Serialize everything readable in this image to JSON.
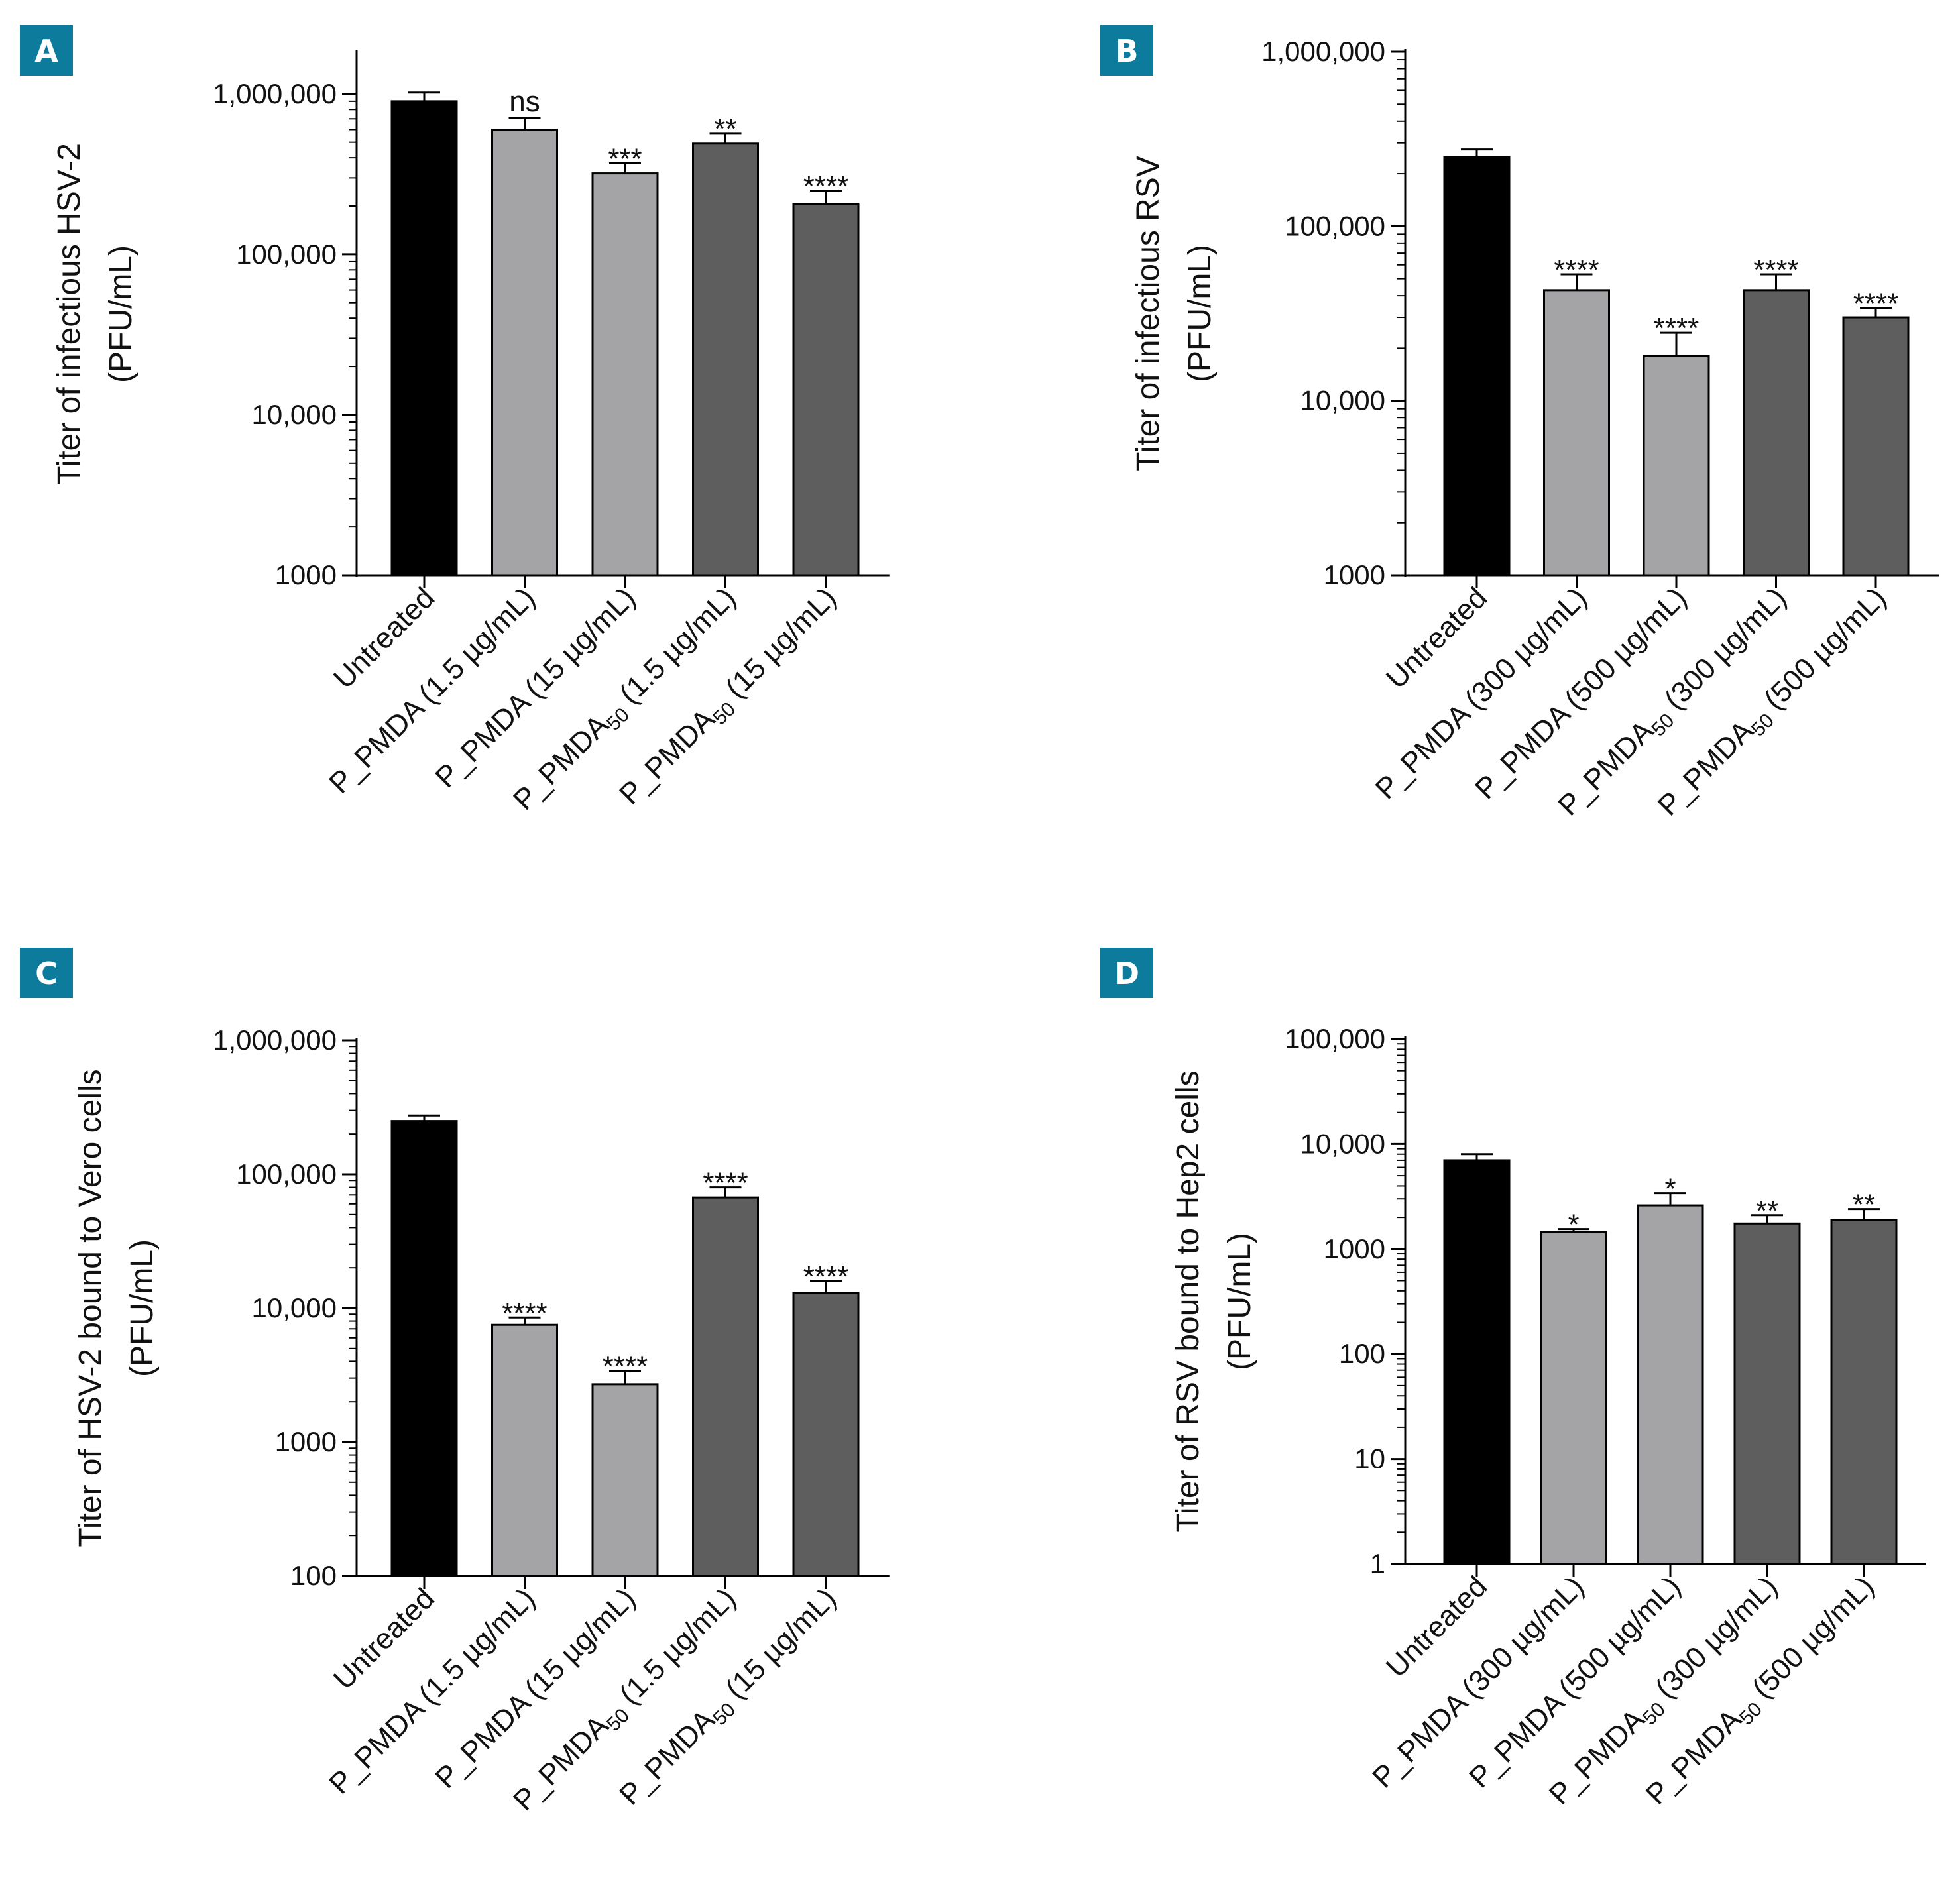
{
  "panels": [
    {
      "letter": "A"
    },
    {
      "letter": "B"
    },
    {
      "letter": "C"
    },
    {
      "letter": "D"
    }
  ],
  "chart_data": [
    {
      "type": "bar",
      "panel": "A",
      "yscale": "log",
      "ylabel_lines": [
        "Titer of infectious HSV-2",
        "(PFU/mL)"
      ],
      "ylim": [
        1000,
        1800000
      ],
      "yticks": [
        1000,
        10000,
        100000,
        1000000
      ],
      "ytick_labels": [
        "1000",
        "10,000",
        "100,000",
        "1,000,000"
      ],
      "categories": [
        {
          "main": "Untreated",
          "sub": "",
          "rest": ""
        },
        {
          "main": "P_PMDA (1.5 µg/mL)",
          "sub": "",
          "rest": ""
        },
        {
          "main": "P_PMDA (15 µg/mL)",
          "sub": "",
          "rest": ""
        },
        {
          "main": "P_PMDA",
          "sub": "50",
          "rest": " (1.5 µg/mL)"
        },
        {
          "main": "P_PMDA",
          "sub": "50",
          "rest": " (15 µg/mL)"
        }
      ],
      "values": [
        900000,
        600000,
        320000,
        490000,
        205000
      ],
      "errors": [
        120000,
        110000,
        50000,
        80000,
        45000
      ],
      "significance": [
        "",
        "ns",
        "***",
        "**",
        "****"
      ],
      "colors": [
        "#000000",
        "#a4a4a7",
        "#a4a4a7",
        "#5e5e5e",
        "#5e5e5e"
      ]
    },
    {
      "type": "bar",
      "panel": "B",
      "yscale": "log",
      "ylabel_lines": [
        "Titer of infectious RSV",
        "(PFU/mL)"
      ],
      "ylim": [
        1000,
        1000000
      ],
      "yticks": [
        1000,
        10000,
        100000,
        1000000
      ],
      "ytick_labels": [
        "1000",
        "10,000",
        "100,000",
        "1,000,000"
      ],
      "categories": [
        {
          "main": "Untreated",
          "sub": "",
          "rest": ""
        },
        {
          "main": "P_PMDA (300 µg/mL)",
          "sub": "",
          "rest": ""
        },
        {
          "main": "P_PMDA (500 µg/mL)",
          "sub": "",
          "rest": ""
        },
        {
          "main": "P_PMDA",
          "sub": "50",
          "rest": " (300 µg/mL)"
        },
        {
          "main": "P_PMDA",
          "sub": "50",
          "rest": " (500 µg/mL)"
        }
      ],
      "values": [
        250000,
        43000,
        18000,
        43000,
        30000
      ],
      "errors": [
        25000,
        10000,
        6500,
        10000,
        4000
      ],
      "significance": [
        "",
        "****",
        "****",
        "****",
        "****"
      ],
      "colors": [
        "#000000",
        "#a4a4a7",
        "#a4a4a7",
        "#5e5e5e",
        "#5e5e5e"
      ]
    },
    {
      "type": "bar",
      "panel": "C",
      "yscale": "log",
      "ylabel_lines": [
        "Titer of HSV-2 bound to  Vero cells",
        "(PFU/mL)"
      ],
      "ylim": [
        100,
        1000000
      ],
      "yticks": [
        100,
        1000,
        10000,
        100000,
        1000000
      ],
      "ytick_labels": [
        "100",
        "1000",
        "10,000",
        "100,000",
        "1,000,000"
      ],
      "categories": [
        {
          "main": "Untreated",
          "sub": "",
          "rest": ""
        },
        {
          "main": "P_PMDA (1.5 µg/mL)",
          "sub": "",
          "rest": ""
        },
        {
          "main": "P_PMDA (15 µg/mL)",
          "sub": "",
          "rest": ""
        },
        {
          "main": "P_PMDA",
          "sub": "50",
          "rest": " (1.5 µg/mL)"
        },
        {
          "main": "P_PMDA",
          "sub": "50",
          "rest": " (15 µg/mL)"
        }
      ],
      "values": [
        250000,
        7500,
        2700,
        67000,
        13000
      ],
      "errors": [
        25000,
        1000,
        700,
        13000,
        3000
      ],
      "significance": [
        "",
        "****",
        "****",
        "****",
        "****"
      ],
      "colors": [
        "#000000",
        "#a4a4a7",
        "#a4a4a7",
        "#5e5e5e",
        "#5e5e5e"
      ]
    },
    {
      "type": "bar",
      "panel": "D",
      "yscale": "log",
      "ylabel_lines": [
        "Titer of RSV bound to Hep2 cells",
        "(PFU/mL)"
      ],
      "ylim": [
        1,
        100000
      ],
      "yticks": [
        1,
        10,
        100,
        1000,
        10000,
        100000
      ],
      "ytick_labels": [
        "1",
        "10",
        "100",
        "1000",
        "10,000",
        "100,000"
      ],
      "categories": [
        {
          "main": "Untreated",
          "sub": "",
          "rest": ""
        },
        {
          "main": "P_PMDA (300 µg/mL)",
          "sub": "",
          "rest": ""
        },
        {
          "main": "P_PMDA (500 µg/mL)",
          "sub": "",
          "rest": ""
        },
        {
          "main": "P_PMDA",
          "sub": "50",
          "rest": " (300 µg/mL)"
        },
        {
          "main": "P_PMDA",
          "sub": "50",
          "rest": " (500 µg/mL)"
        }
      ],
      "values": [
        7000,
        1450,
        2600,
        1750,
        1900
      ],
      "errors": [
        1000,
        100,
        800,
        350,
        500
      ],
      "significance": [
        "",
        "*",
        "*",
        "**",
        "**"
      ],
      "colors": [
        "#000000",
        "#a4a4a7",
        "#a4a4a7",
        "#5e5e5e",
        "#5e5e5e"
      ]
    }
  ]
}
